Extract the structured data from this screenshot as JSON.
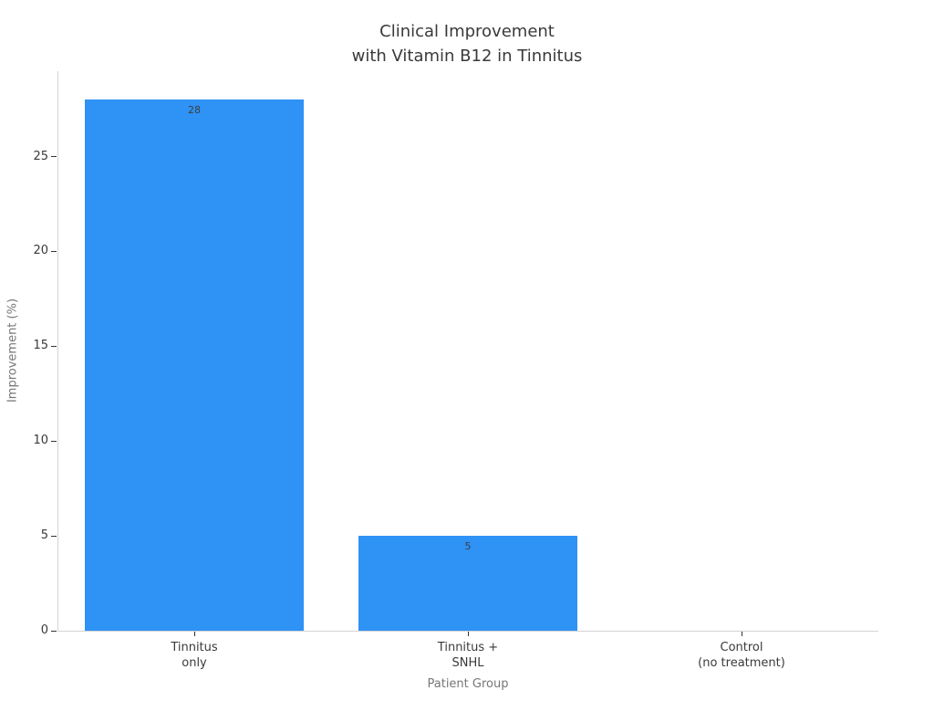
{
  "chart_data": {
    "type": "bar",
    "title": "Clinical Improvement\nwith Vitamin B12 in Tinnitus",
    "categories": [
      "Tinnitus\nonly",
      "Tinnitus +\nSNHL",
      "Control\n(no treatment)"
    ],
    "values": [
      28,
      5,
      0
    ],
    "value_labels": [
      "28",
      "5",
      ""
    ],
    "xlabel": "Patient Group",
    "ylabel": "Improvement (%)",
    "ylim": [
      0,
      29.5
    ],
    "yticks": [
      0,
      5,
      10,
      15,
      20,
      25
    ],
    "bar_width_fraction": 0.8,
    "grid": false,
    "legend": null,
    "bar_color": "#2f92f5"
  },
  "colors": {
    "bar": "#2f92f5",
    "spine": "#d4d4d4",
    "tick_mark": "#333333",
    "tick_label": "#3a3a3a",
    "axis_title": "#777777",
    "title": "#3a3a3a",
    "value_label": "#3e3e3e",
    "background": "#ffffff"
  }
}
